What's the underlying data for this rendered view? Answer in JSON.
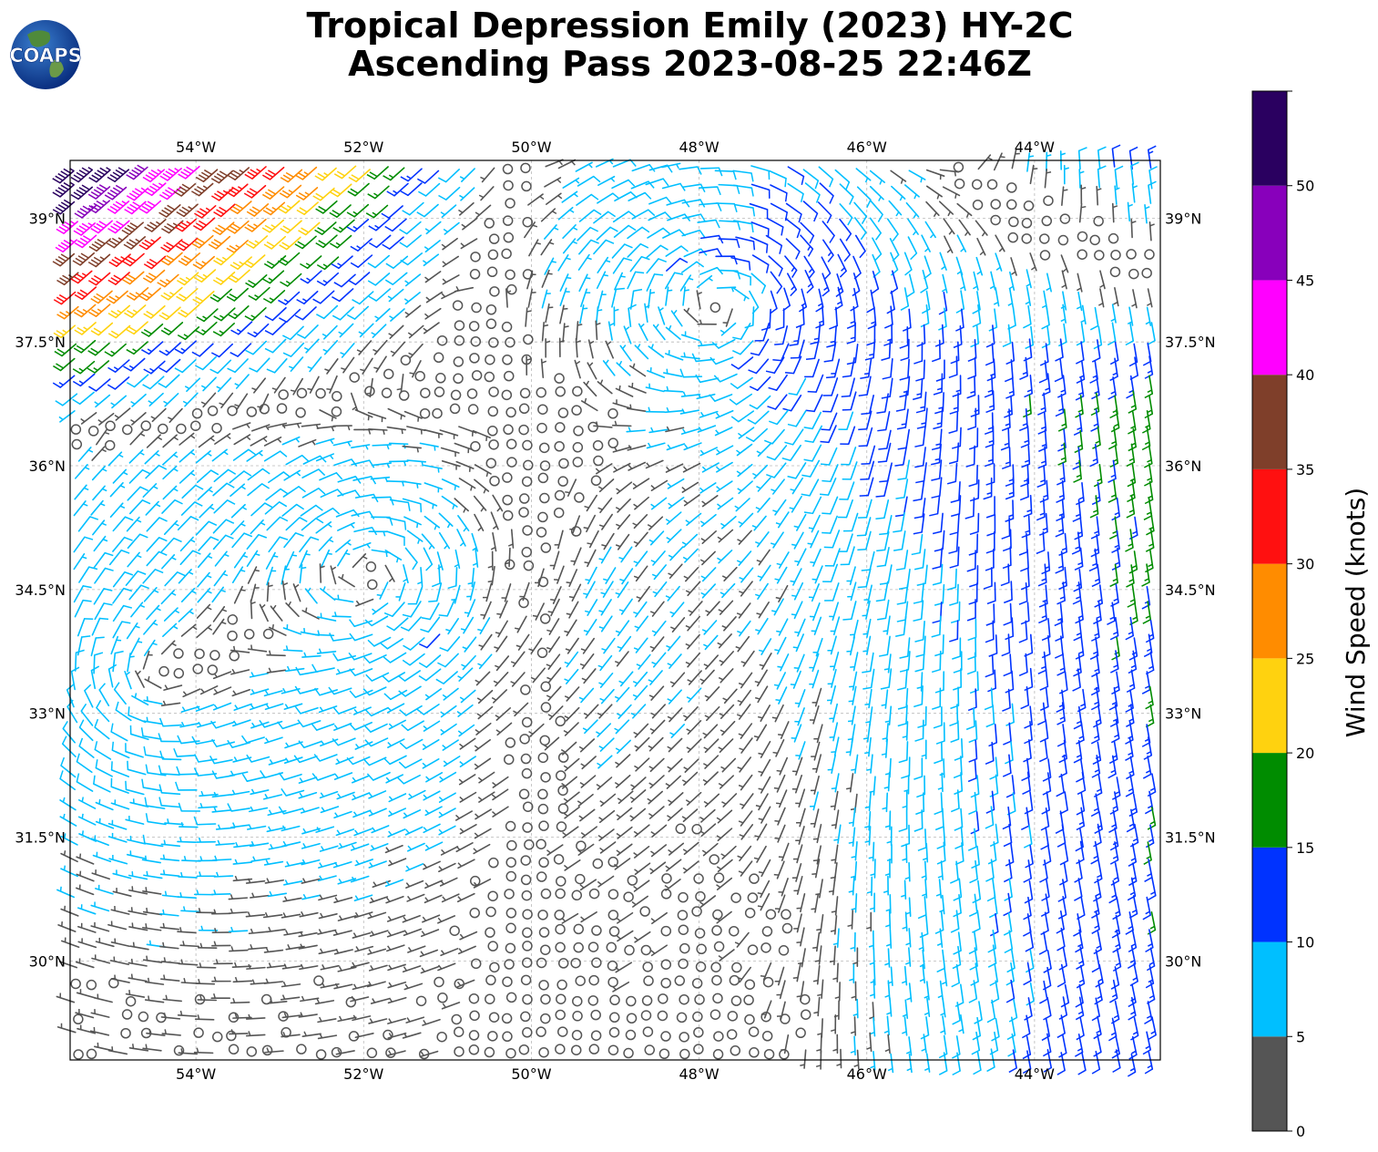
{
  "title_line1": "Tropical Depression Emily (2023) HY-2C",
  "title_line2": "Ascending Pass 2023-08-25 22:46Z",
  "logo_text": "COAPS",
  "map": {
    "lon_range": [
      -55.5,
      -42.5
    ],
    "lat_range": [
      28.8,
      39.7
    ],
    "lon_ticks": [
      {
        "value": -54,
        "label": "54°W"
      },
      {
        "value": -52,
        "label": "52°W"
      },
      {
        "value": -50,
        "label": "50°W"
      },
      {
        "value": -48,
        "label": "48°W"
      },
      {
        "value": -46,
        "label": "46°W"
      },
      {
        "value": -44,
        "label": "44°W"
      }
    ],
    "lat_ticks": [
      {
        "value": 39,
        "label": "39°N"
      },
      {
        "value": 37.5,
        "label": "37.5°N"
      },
      {
        "value": 36,
        "label": "36°N"
      },
      {
        "value": 34.5,
        "label": "34.5°N"
      },
      {
        "value": 33,
        "label": "33°N"
      },
      {
        "value": 31.5,
        "label": "31.5°N"
      },
      {
        "value": 30,
        "label": "30°N"
      }
    ],
    "gridlines": true,
    "wind_field": {
      "circulation_centers": [
        {
          "lon": -51.9,
          "lat": 34.7,
          "strength": 1.0
        },
        {
          "lon": -47.7,
          "lat": 38.0,
          "strength": 1.2
        },
        {
          "lon": -54.6,
          "lat": 33.3,
          "strength": 0.8
        }
      ],
      "calm_zone_center_lon": -50.0,
      "northwest_strong_wind_kt": 22,
      "northeast_strong_wind_kt": 24
    }
  },
  "colorbar": {
    "label": "Wind Speed (knots)",
    "bins": [
      {
        "min": 0,
        "max": 5,
        "color": "#555555"
      },
      {
        "min": 5,
        "max": 10,
        "color": "#00bfff"
      },
      {
        "min": 10,
        "max": 15,
        "color": "#0033ff"
      },
      {
        "min": 15,
        "max": 20,
        "color": "#008c00"
      },
      {
        "min": 20,
        "max": 25,
        "color": "#ffd20f"
      },
      {
        "min": 25,
        "max": 30,
        "color": "#ff8c00"
      },
      {
        "min": 30,
        "max": 35,
        "color": "#ff1010"
      },
      {
        "min": 35,
        "max": 40,
        "color": "#7f3f2a"
      },
      {
        "min": 40,
        "max": 45,
        "color": "#ff00ff"
      },
      {
        "min": 45,
        "max": 50,
        "color": "#8800bb"
      },
      {
        "min": 50,
        "max": 55,
        "color": "#2a0060"
      }
    ],
    "tick_labels": [
      "0",
      "5",
      "10",
      "15",
      "20",
      "25",
      "30",
      "35",
      "40",
      "45",
      "50"
    ]
  }
}
